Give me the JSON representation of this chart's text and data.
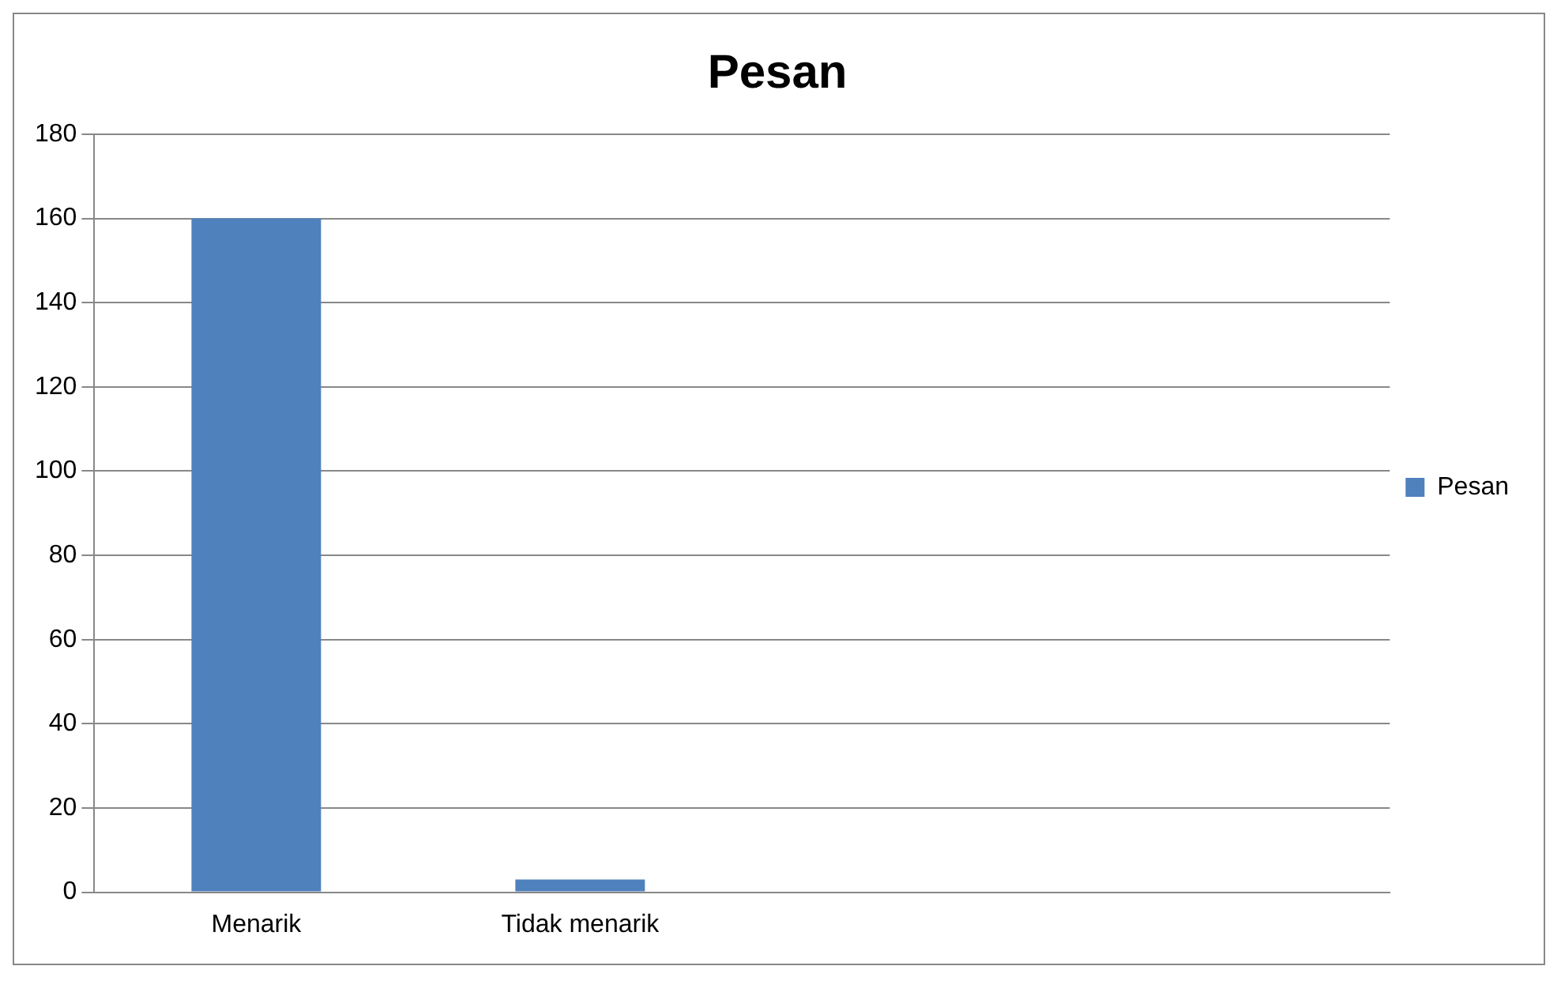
{
  "chart_data": {
    "type": "bar",
    "title": "Pesan",
    "categories": [
      "Menarik",
      "Tidak menarik",
      null,
      null
    ],
    "series": [
      {
        "name": "Pesan",
        "color": "#4f81bd",
        "values": [
          160,
          3,
          null,
          null
        ]
      }
    ],
    "ylim": [
      0,
      180
    ],
    "yticks": [
      0,
      20,
      40,
      60,
      80,
      100,
      120,
      140,
      160,
      180
    ],
    "grid": "y",
    "legend": "right"
  }
}
